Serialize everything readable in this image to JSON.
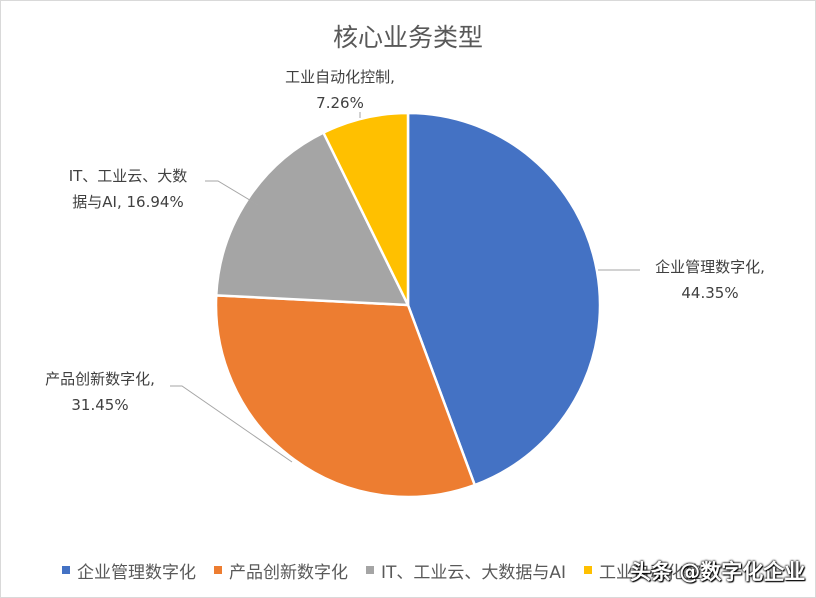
{
  "chart_data": {
    "type": "pie",
    "title": "核心业务类型",
    "categories": [
      "企业管理数字化",
      "产品创新数字化",
      "IT、工业云、大数据与AI",
      "工业自动化控制"
    ],
    "values": [
      44.35,
      31.45,
      16.94,
      7.26
    ],
    "unit": "%",
    "colors": [
      "#4472c4",
      "#ed7d31",
      "#a5a5a5",
      "#ffc000"
    ],
    "data_labels": [
      {
        "lines": [
          "企业管理数字化,",
          "44.35%"
        ]
      },
      {
        "lines": [
          "产品创新数字化,",
          "31.45%"
        ]
      },
      {
        "lines": [
          "IT、工业云、大数",
          "据与AI, 16.94%"
        ]
      },
      {
        "lines": [
          "工业自动化控制,",
          "7.26%"
        ]
      }
    ],
    "legend": {
      "position": "bottom",
      "entries": [
        "企业管理数字化",
        "产品创新数字化",
        "IT、工业云、大数据与AI",
        "工业自动化控制"
      ]
    }
  },
  "watermark": "头条 @数字化企业"
}
